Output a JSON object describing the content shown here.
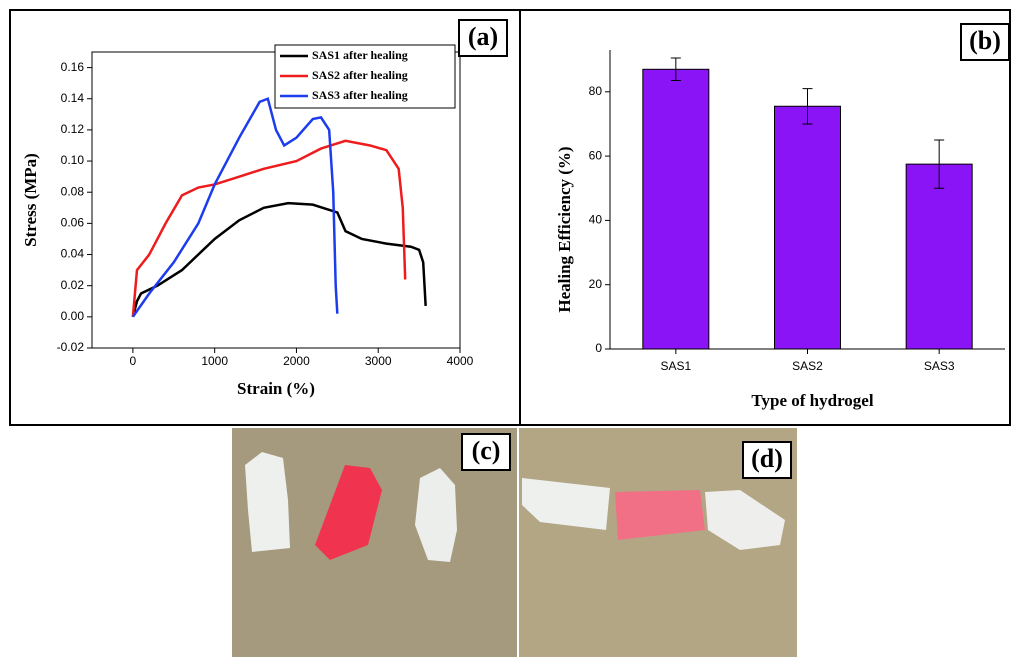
{
  "chart_data": [
    {
      "type": "line",
      "panel_label": "(a)",
      "x_label": "Strain (%)",
      "y_label": "Stress (MPa)",
      "xlim": [
        -500,
        4000
      ],
      "xticks": [
        0,
        1000,
        2000,
        3000,
        4000
      ],
      "ylim": [
        -0.02,
        0.17
      ],
      "yticks": [
        {
          "value": -0.02,
          "label": "-0.02"
        },
        {
          "value": 0,
          "label": "0.00"
        },
        {
          "value": 0.02,
          "label": "0.02"
        },
        {
          "value": 0.04,
          "label": "0.04"
        },
        {
          "value": 0.06,
          "label": "0.06"
        },
        {
          "value": 0.08,
          "label": "0.08"
        },
        {
          "value": 0.1,
          "label": "0.10"
        },
        {
          "value": 0.12,
          "label": "0.12"
        },
        {
          "value": 0.14,
          "label": "0.14"
        },
        {
          "value": 0.16,
          "label": "0.16"
        }
      ],
      "series": [
        {
          "name": "SAS1 after healing",
          "color": "#000000",
          "x": [
            0,
            50,
            100,
            300,
            600,
            1000,
            1300,
            1600,
            1900,
            2200,
            2500,
            2600,
            2800,
            3100,
            3400,
            3500,
            3550,
            3580
          ],
          "values": [
            0,
            0.01,
            0.015,
            0.02,
            0.03,
            0.05,
            0.062,
            0.07,
            0.073,
            0.072,
            0.067,
            0.055,
            0.05,
            0.047,
            0.045,
            0.043,
            0.035,
            0.007
          ]
        },
        {
          "name": "SAS2 after healing",
          "color": "#ee1c1c",
          "x": [
            0,
            50,
            200,
            400,
            600,
            800,
            1000,
            1300,
            1600,
            2000,
            2300,
            2600,
            2900,
            3100,
            3250,
            3300,
            3330
          ],
          "values": [
            0,
            0.03,
            0.04,
            0.06,
            0.078,
            0.083,
            0.085,
            0.09,
            0.095,
            0.1,
            0.108,
            0.113,
            0.11,
            0.107,
            0.095,
            0.07,
            0.024
          ]
        },
        {
          "name": "SAS3 after healing",
          "color": "#1c3cee",
          "x": [
            0,
            200,
            500,
            800,
            1000,
            1300,
            1550,
            1650,
            1750,
            1850,
            2000,
            2200,
            2300,
            2400,
            2450,
            2480,
            2500
          ],
          "values": [
            0,
            0.015,
            0.035,
            0.06,
            0.085,
            0.115,
            0.138,
            0.14,
            0.12,
            0.11,
            0.115,
            0.127,
            0.128,
            0.12,
            0.08,
            0.02,
            0.002
          ]
        }
      ]
    },
    {
      "type": "bar",
      "panel_label": "(b)",
      "x_label": "Type of hydrogel",
      "y_label": "Healing Efficiency (%)",
      "categories": [
        "SAS1",
        "SAS2",
        "SAS3"
      ],
      "values": [
        87,
        75.5,
        57.5
      ],
      "errors": [
        3.5,
        5.5,
        7.5
      ],
      "color": "#8a14f5",
      "ylim": [
        0,
        93
      ],
      "yticks": [
        0,
        20,
        40,
        60,
        80
      ]
    }
  ],
  "photos": [
    {
      "label": "(c)"
    },
    {
      "label": "(d)"
    }
  ]
}
